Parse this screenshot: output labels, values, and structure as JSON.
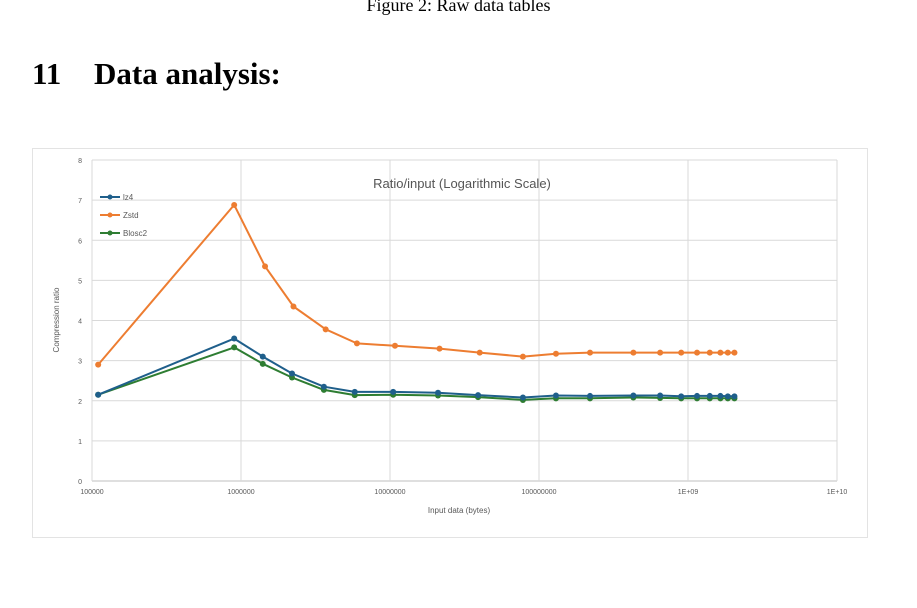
{
  "page": {
    "figure_caption": "Figure 2: Raw data tables",
    "section_number": "11",
    "section_title": "Data analysis:"
  },
  "chart_data": {
    "type": "line",
    "title": "Ratio/input (Logarithmic  Scale)",
    "xlabel": "Input data (bytes)",
    "ylabel": "Compression ratio",
    "x_scale": "log",
    "xlim": [
      100000,
      10000000000
    ],
    "ylim": [
      0,
      8
    ],
    "x_ticks": [
      100000,
      1000000,
      10000000,
      100000000,
      1000000000,
      10000000000
    ],
    "x_tick_labels": [
      "100000",
      "1000000",
      "10000000",
      "100000000",
      "1E+09",
      "1E+10"
    ],
    "y_ticks": [
      0,
      1,
      2,
      3,
      4,
      5,
      6,
      7,
      8
    ],
    "y_tick_labels": [
      "0",
      "1",
      "2",
      "3",
      "4",
      "5",
      "6",
      "7",
      "8"
    ],
    "grid": true,
    "legend_position": "top-left",
    "series": [
      {
        "name": "lz4",
        "color": "#1f5f8b",
        "points": [
          [
            110000,
            2.15
          ],
          [
            900000,
            3.55
          ],
          [
            1400000,
            3.1
          ],
          [
            2200000,
            2.68
          ],
          [
            3600000,
            2.35
          ],
          [
            5800000,
            2.22
          ],
          [
            10500000,
            2.22
          ],
          [
            21000000,
            2.2
          ],
          [
            39000000,
            2.14
          ],
          [
            78000000,
            2.08
          ],
          [
            130000000,
            2.13
          ],
          [
            220000000,
            2.12
          ],
          [
            430000000,
            2.13
          ],
          [
            650000000,
            2.13
          ],
          [
            900000000,
            2.11
          ],
          [
            1150000000,
            2.12
          ],
          [
            1400000000,
            2.12
          ],
          [
            1650000000,
            2.12
          ],
          [
            1850000000,
            2.11
          ],
          [
            2050000000,
            2.11
          ]
        ]
      },
      {
        "name": "Zstd",
        "color": "#ed7d31",
        "points": [
          [
            110000,
            2.9
          ],
          [
            900000,
            6.88
          ],
          [
            1450000,
            5.35
          ],
          [
            2250000,
            4.35
          ],
          [
            3700000,
            3.78
          ],
          [
            6000000,
            3.43
          ],
          [
            10800000,
            3.37
          ],
          [
            21500000,
            3.3
          ],
          [
            40000000,
            3.2
          ],
          [
            78000000,
            3.1
          ],
          [
            130000000,
            3.17
          ],
          [
            220000000,
            3.2
          ],
          [
            430000000,
            3.2
          ],
          [
            650000000,
            3.2
          ],
          [
            900000000,
            3.2
          ],
          [
            1150000000,
            3.2
          ],
          [
            1400000000,
            3.2
          ],
          [
            1650000000,
            3.2
          ],
          [
            1850000000,
            3.2
          ],
          [
            2050000000,
            3.2
          ]
        ]
      },
      {
        "name": "Blosc2",
        "color": "#2e7d32",
        "points": [
          [
            110000,
            2.15
          ],
          [
            900000,
            3.33
          ],
          [
            1400000,
            2.92
          ],
          [
            2200000,
            2.58
          ],
          [
            3600000,
            2.27
          ],
          [
            5800000,
            2.14
          ],
          [
            10500000,
            2.15
          ],
          [
            21000000,
            2.13
          ],
          [
            39000000,
            2.09
          ],
          [
            78000000,
            2.02
          ],
          [
            130000000,
            2.06
          ],
          [
            220000000,
            2.06
          ],
          [
            430000000,
            2.08
          ],
          [
            650000000,
            2.07
          ],
          [
            900000000,
            2.06
          ],
          [
            1150000000,
            2.06
          ],
          [
            1400000000,
            2.06
          ],
          [
            1650000000,
            2.06
          ],
          [
            1850000000,
            2.06
          ],
          [
            2050000000,
            2.06
          ]
        ]
      }
    ]
  }
}
